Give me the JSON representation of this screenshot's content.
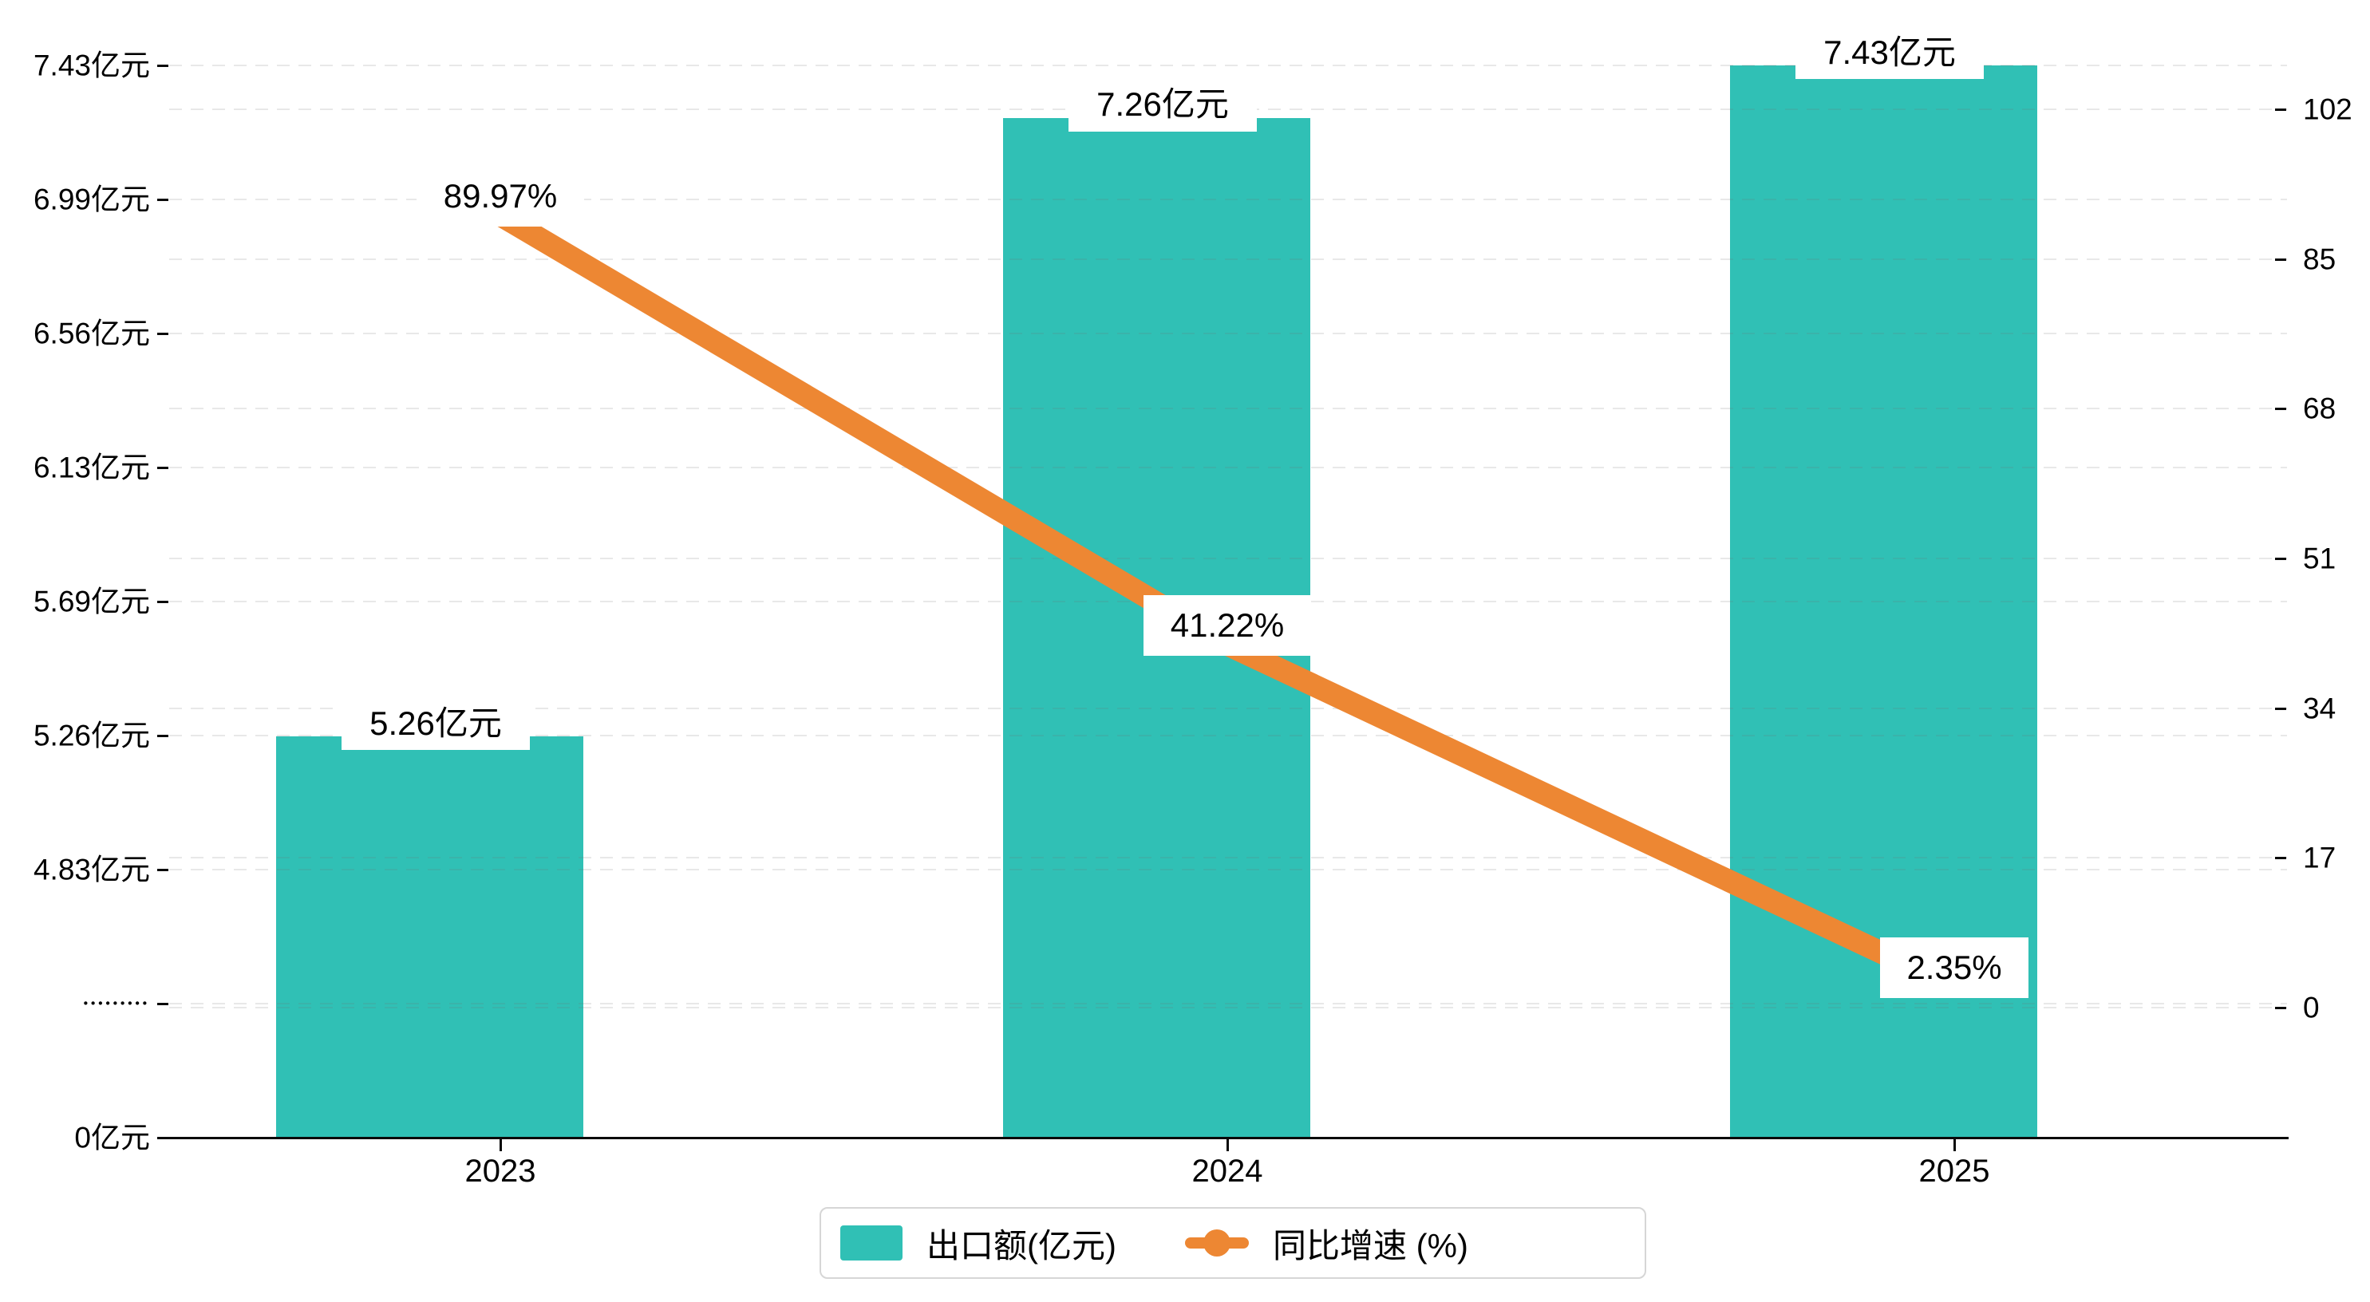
{
  "chart_data": {
    "type": "bar+line",
    "categories": [
      "2023",
      "2024",
      "2025"
    ],
    "series": [
      {
        "name": "出口额(亿元)",
        "type": "bar",
        "values": [
          5.26,
          7.26,
          7.43
        ],
        "labels": [
          "5.26亿元",
          "7.26亿元",
          "7.43亿元"
        ],
        "color": "#30c0b5"
      },
      {
        "name": "同比增速 (%)",
        "type": "line",
        "values": [
          89.97,
          41.22,
          2.35
        ],
        "labels": [
          "89.97%",
          "41.22%",
          "2.35%"
        ],
        "color": "#ed8733"
      }
    ],
    "left_axis": {
      "tick_labels": [
        "0亿元",
        "•••••••••",
        "4.83亿元",
        "5.26亿元",
        "5.69亿元",
        "6.13亿元",
        "6.56亿元",
        "6.99亿元",
        "7.43亿元"
      ],
      "broken_axis": true,
      "linear_range": [
        4.83,
        7.43
      ]
    },
    "right_axis": {
      "tick_labels": [
        "0",
        "17",
        "34",
        "51",
        "68",
        "85",
        "102"
      ],
      "range": [
        0,
        102
      ]
    },
    "grid": "dashed, both axes",
    "legend_position": "bottom-center"
  },
  "legend": {
    "bar_label": "出口额(亿元)",
    "line_label": "同比增速 (%)"
  },
  "colors": {
    "bar": "#30c0b5",
    "line": "#ed8733",
    "axis": "#0a0a0a",
    "label_box": "#ffffff"
  }
}
